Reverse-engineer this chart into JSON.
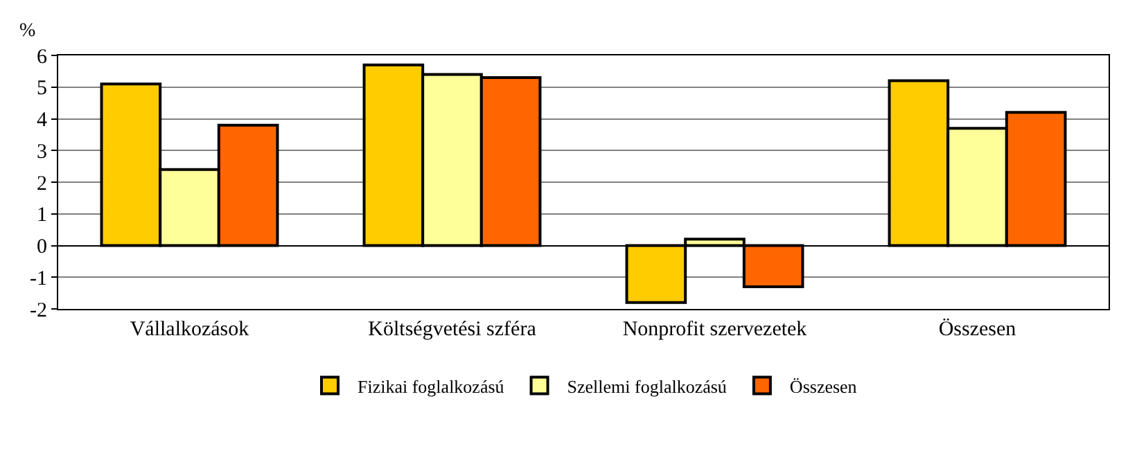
{
  "chart_data": {
    "type": "bar",
    "ylabel": "%",
    "categories": [
      "Vállalkozások",
      "Költségvetési szféra",
      "Nonprofit szervezetek",
      "Összesen"
    ],
    "series": [
      {
        "name": "Fizikai foglalkozású",
        "color": "#ffcc00",
        "values": [
          5.1,
          5.7,
          -1.8,
          5.2
        ]
      },
      {
        "name": "Szellemi foglalkozású",
        "color": "#ffff99",
        "values": [
          2.4,
          5.4,
          0.2,
          3.7
        ]
      },
      {
        "name": "Összesen",
        "color": "#ff6600",
        "values": [
          3.8,
          5.3,
          -1.3,
          4.2
        ]
      }
    ],
    "ylim": [
      -2,
      6
    ],
    "yticks": [
      -2,
      -1,
      0,
      1,
      2,
      3,
      4,
      5,
      6
    ],
    "grid": "y",
    "legend": "bottom"
  }
}
